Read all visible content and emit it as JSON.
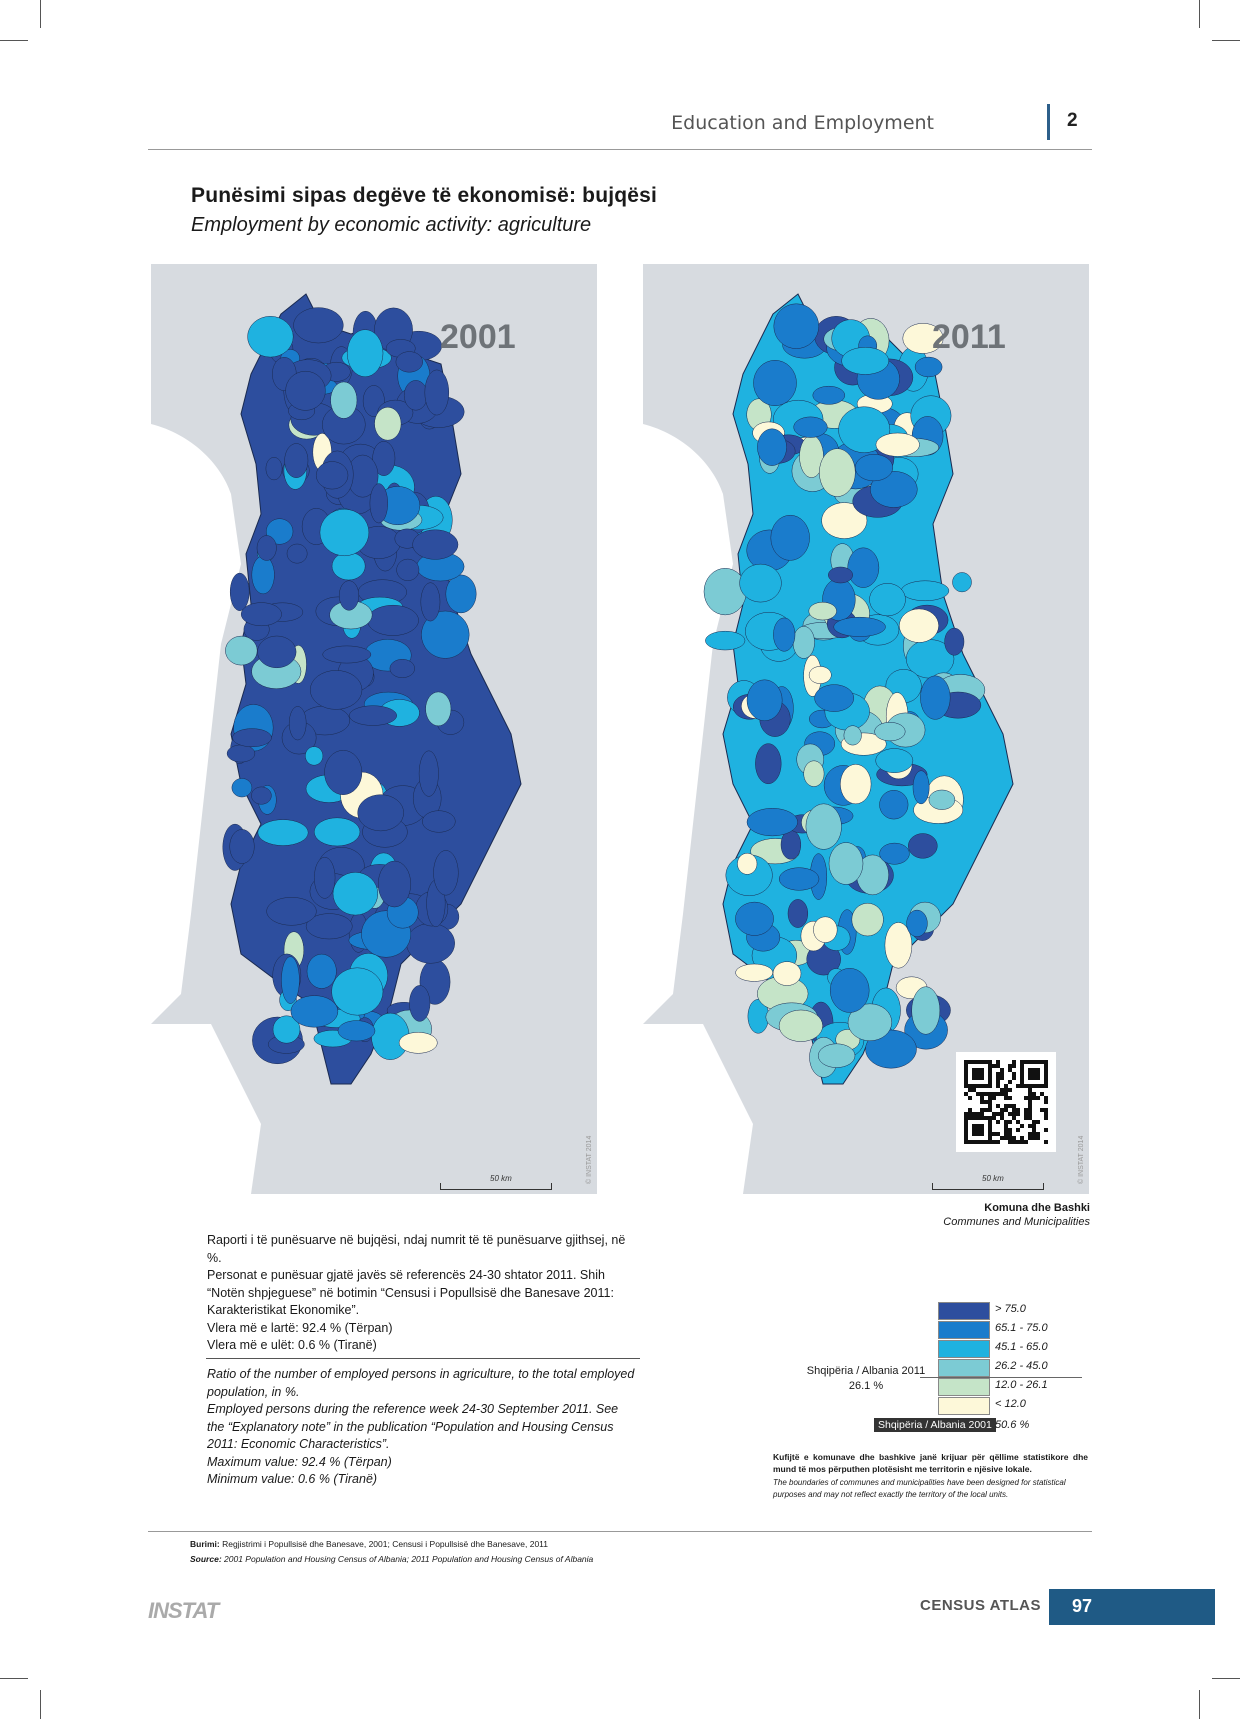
{
  "header": {
    "section": "Education and Employment",
    "chapter": "2"
  },
  "title": {
    "albanian": "Punësimi sipas degëve të ekonomisë: bujqësi",
    "english": "Employment by economic activity: agriculture"
  },
  "maps": [
    {
      "year": "2001",
      "scale": "50 km",
      "copyright": "© INSTAT 2014"
    },
    {
      "year": "2011",
      "scale": "50 km",
      "copyright": "© INSTAT 2014"
    }
  ],
  "legend": {
    "heading": "Komuna dhe Bashki",
    "subheading": "Communes and Municipalities",
    "classes": [
      {
        "label": "> 75.0",
        "color": "#2d4e9e"
      },
      {
        "label": "65.1 - 75.0",
        "color": "#1a7ccc"
      },
      {
        "label": "45.1 - 65.0",
        "color": "#1fb2e0"
      },
      {
        "label": "26.2 - 45.0",
        "color": "#7ccbd4"
      },
      {
        "label": "12.0 - 26.1",
        "color": "#c5e4c8"
      },
      {
        "label": "< 12.0",
        "color": "#fdf8d9"
      }
    ],
    "national_2011_label": "Shqipëria / Albania 2011",
    "national_2011_value": "26.1 %",
    "national_2001_label": "Shqipëria / Albania 2001",
    "national_2001_value": "50.6 %"
  },
  "description_al": [
    "Raporti i të punësuarve në bujqësi, ndaj numrit të të punësuarve gjithsej, në %.",
    "Personat e punësuar gjatë javës së referencës 24-30 shtator 2011. Shih “Notën shpjeguese” në botimin “Censusi i Popullsisë dhe Banesave 2011: Karakteristikat Ekonomike”.",
    "Vlera më e lartë: 92.4 % (Tërpan)",
    "Vlera më e ulët: 0.6 % (Tiranë)"
  ],
  "description_en": [
    "Ratio of the number of employed persons in agriculture, to the total employed population, in %.",
    "Employed persons during the reference week 24-30 September 2011. See the “Explanatory note” in the publication “Population and Housing Census 2011: Economic Characteristics”.",
    "Maximum value: 92.4 % (Tërpan)",
    "Minimum value: 0.6 % (Tiranë)"
  ],
  "note": {
    "albanian": "Kufijtë e komunave dhe bashkive janë krijuar për qëllime statistikore dhe mund të mos përputhen plotësisht me territorin e njësive lokale.",
    "english": "The boundaries of communes and municipalities have been designed for statistical purposes and may not reflect exactly the territory of the local units."
  },
  "source": {
    "albanian_label": "Burimi:",
    "albanian_text": "Regjistrimi i Popullsisë dhe Banesave, 2001; Censusi i Popullsisë dhe Banesave, 2011",
    "english_label": "Source:",
    "english_text": "2001 Population and Housing Census of Albania; 2011 Population and Housing Census of Albania"
  },
  "footer": {
    "logo": "INSTAT",
    "publication": "CENSUS ATLAS",
    "page": "97"
  }
}
